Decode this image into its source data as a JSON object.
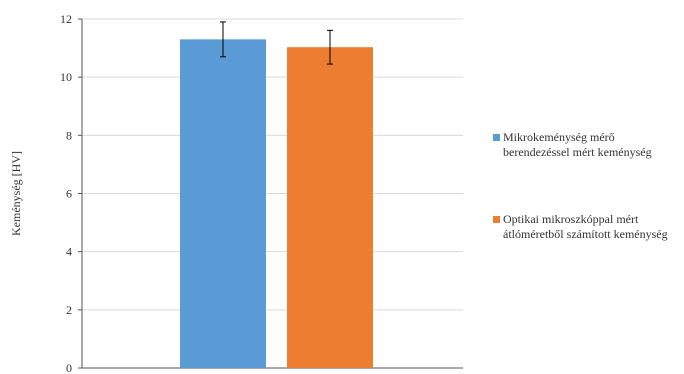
{
  "chart_data": {
    "type": "bar",
    "categories": [
      ""
    ],
    "series": [
      {
        "name": "Mikrokeménység mérő\nberendezéssel mért keménység",
        "values": [
          11.3
        ],
        "error": [
          0.6
        ],
        "color": "#5b9bd5"
      },
      {
        "name": "Optikai mikroszkóppal mért\nátlóméretből számított keménység",
        "values": [
          11.03
        ],
        "error": [
          0.58
        ],
        "color": "#ed7d31"
      }
    ],
    "title": "",
    "xlabel": "",
    "ylabel": "Keménység [HV]",
    "ylim": [
      0,
      12
    ],
    "yticks": [
      0,
      2,
      4,
      6,
      8,
      10,
      12
    ],
    "grid": true,
    "legend_position": "right"
  }
}
